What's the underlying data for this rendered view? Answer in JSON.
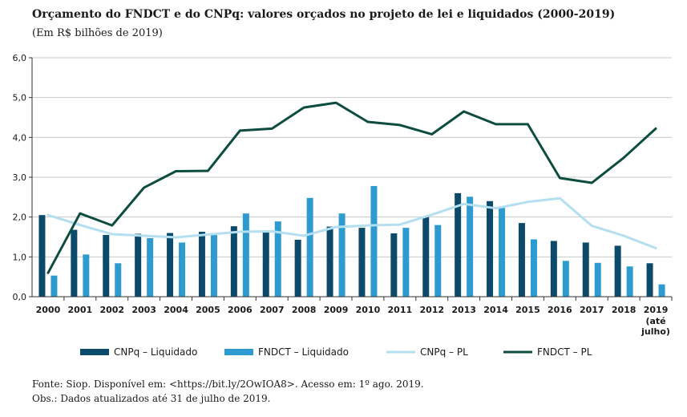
{
  "title": "Orçamento do FNDCT e do CNPq: valores orçados no projeto de lei e liquidados (2000-2019)",
  "subtitle": "(Em R$ bilhões de 2019)",
  "source": "Fonte: Siop. Disponível em: <https://bit.ly/2OwIOA8>. Acesso em: 1º ago. 2019.",
  "obs": "Obs.: Dados atualizados até 31 de julho de 2019.",
  "colors": {
    "cnpq_liquidado": "#0b4a6b",
    "fndct_liquidado": "#2e9bd0",
    "cnpq_pl": "#b3dff0",
    "fndct_pl": "#0d4d3f"
  },
  "chart_data": {
    "type": "bar",
    "categories": [
      "2000",
      "2001",
      "2002",
      "2003",
      "2004",
      "2005",
      "2006",
      "2007",
      "2008",
      "2009",
      "2010",
      "2011",
      "2012",
      "2013",
      "2014",
      "2015",
      "2016",
      "2017",
      "2018",
      "2019"
    ],
    "category_extra": {
      "2019": [
        "(até",
        "julho)"
      ]
    },
    "y_ticks": [
      "6,0",
      "5,0",
      "4,0",
      "3,0",
      "2,0",
      "1,0",
      "0,0"
    ],
    "ylim": [
      0,
      6
    ],
    "grid": true,
    "legend_position": "bottom",
    "series": [
      {
        "name": "CNPq – Liquidado",
        "type": "bar",
        "values": [
          2.05,
          1.68,
          1.55,
          1.58,
          1.6,
          1.63,
          1.77,
          1.63,
          1.43,
          1.76,
          1.73,
          1.59,
          2.0,
          2.6,
          2.4,
          1.85,
          1.4,
          1.36,
          1.28,
          0.84
        ]
      },
      {
        "name": "FNDCT – Liquidado",
        "type": "bar",
        "values": [
          0.53,
          1.06,
          0.84,
          1.47,
          1.36,
          1.6,
          2.09,
          1.89,
          2.48,
          2.09,
          2.78,
          1.73,
          1.8,
          2.51,
          2.23,
          1.44,
          0.9,
          0.85,
          0.76,
          0.31
        ]
      },
      {
        "name": "CNPq – PL",
        "type": "line",
        "values": [
          2.05,
          1.8,
          1.57,
          1.53,
          1.49,
          1.56,
          1.63,
          1.64,
          1.53,
          1.75,
          1.79,
          1.81,
          2.06,
          2.33,
          2.22,
          2.38,
          2.47,
          1.78,
          1.53,
          1.22
        ]
      },
      {
        "name": "FNDCT – PL",
        "type": "line",
        "values": [
          0.6,
          2.09,
          1.79,
          2.74,
          3.15,
          3.16,
          4.17,
          4.22,
          4.75,
          4.87,
          4.39,
          4.31,
          4.08,
          4.65,
          4.33,
          4.33,
          2.98,
          2.86,
          3.49,
          4.22
        ]
      }
    ]
  }
}
